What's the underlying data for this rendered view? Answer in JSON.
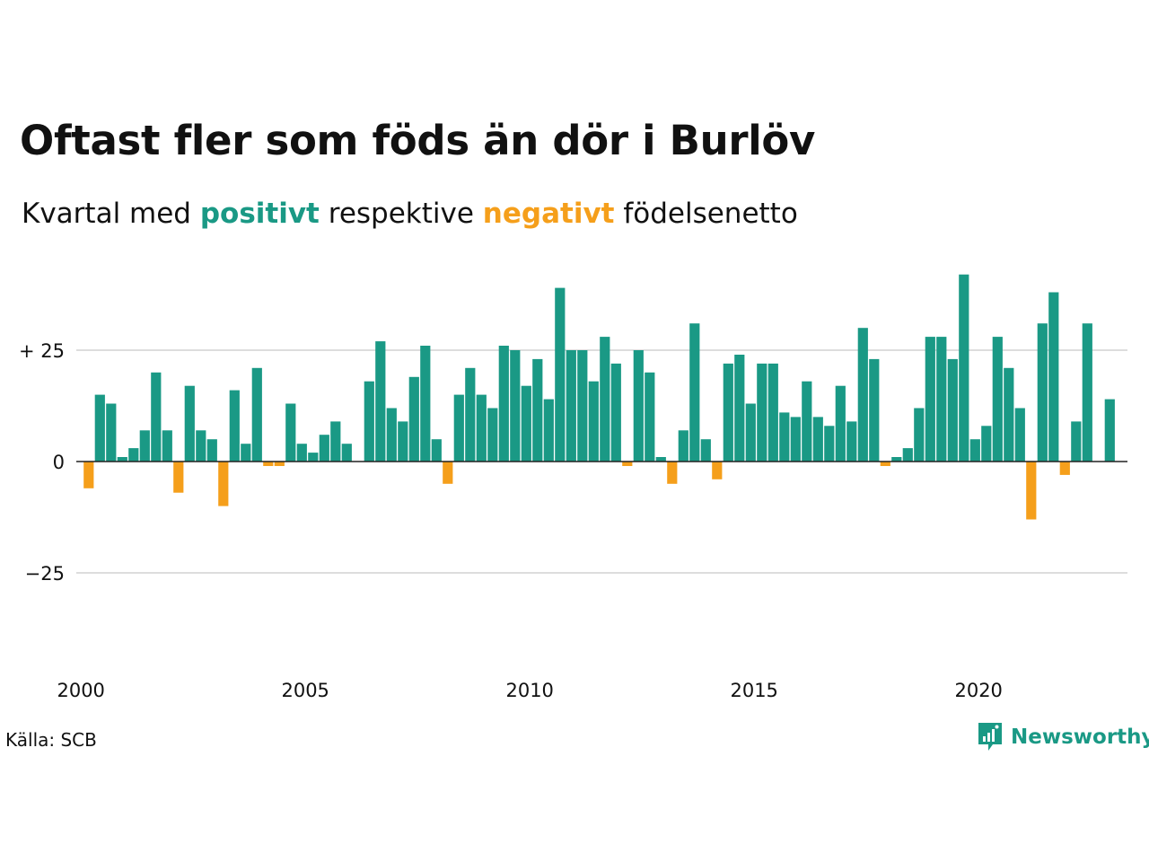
{
  "title": "Oftast fler som föds än dör i Burlöv",
  "subtitle": {
    "part1": "Kvartal med",
    "positive": "positivt",
    "part2": "respektive",
    "negative": "negativt",
    "part3": "födelsenetto"
  },
  "source": "Källa: SCB",
  "brand": {
    "name": "Newsworthy",
    "icon": "newsworthy-logo-icon"
  },
  "colors": {
    "positive": "#1a9985",
    "negative": "#f59f1b",
    "grid": "#dddddd",
    "zero_line": "#222222"
  },
  "chart_data": {
    "type": "bar",
    "x_start": "2000 Q1",
    "x_ticks": [
      "2000",
      "2005",
      "2010",
      "2015",
      "2020"
    ],
    "y_ticks": [
      {
        "value": 25,
        "label": "+ 25"
      },
      {
        "value": 0,
        "label": "0"
      },
      {
        "value": -25,
        "label": "−25"
      }
    ],
    "ylim": [
      -40,
      45
    ],
    "grid": true,
    "values": [
      -6,
      15,
      13,
      1,
      3,
      7,
      20,
      7,
      -7,
      17,
      7,
      5,
      -10,
      16,
      4,
      21,
      -1,
      -1,
      13,
      4,
      2,
      6,
      9,
      4,
      0,
      18,
      27,
      12,
      9,
      19,
      26,
      5,
      -5,
      15,
      21,
      15,
      12,
      26,
      25,
      17,
      23,
      14,
      39,
      25,
      25,
      18,
      28,
      22,
      -1,
      25,
      20,
      1,
      -5,
      7,
      31,
      5,
      -4,
      22,
      24,
      13,
      22,
      22,
      11,
      10,
      18,
      10,
      8,
      17,
      9,
      30,
      23,
      -1,
      1,
      3,
      12,
      28,
      28,
      23,
      42,
      5,
      8,
      28,
      21,
      12,
      -13,
      31,
      38,
      -3,
      9,
      31,
      0,
      14
    ]
  }
}
